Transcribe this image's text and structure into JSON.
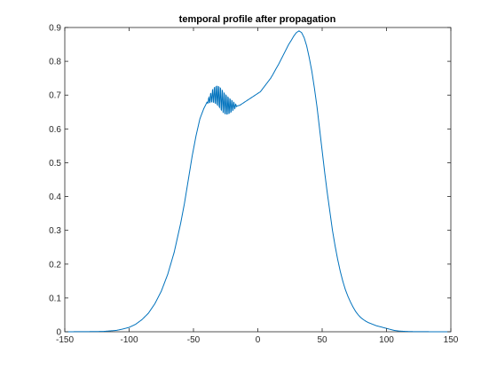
{
  "chart_data": {
    "type": "line",
    "title": "temporal profile after propagation",
    "xlabel": "",
    "ylabel": "",
    "xlim": [
      -150,
      150
    ],
    "ylim": [
      0,
      0.9
    ],
    "xticks": [
      -150,
      -100,
      -50,
      0,
      50,
      100,
      150
    ],
    "yticks": [
      0,
      0.1,
      0.2,
      0.3,
      0.4,
      0.5,
      0.6,
      0.7,
      0.8,
      0.9
    ],
    "grid": false,
    "legend": "none",
    "colors": {
      "line": "#0072bd",
      "axes": "#262626",
      "background": "#ffffff"
    },
    "series": [
      {
        "x": [
          -150,
          -130,
          -120,
          -110,
          -105,
          -100,
          -95,
          -90,
          -85,
          -80,
          -75,
          -70,
          -65,
          -60,
          -57,
          -54,
          -51,
          -48,
          -45,
          -42,
          -40,
          -38,
          -36,
          -34,
          -32,
          -30,
          -28,
          -26,
          -24,
          -22,
          -20,
          -18,
          -16,
          -14,
          -12,
          -10,
          -8,
          -6,
          -4,
          -2,
          0,
          2,
          4,
          6,
          8,
          10,
          12,
          14,
          16,
          18,
          20,
          22,
          24,
          26,
          28,
          30,
          32,
          34,
          36,
          38,
          40,
          42,
          44,
          46,
          48,
          50,
          52,
          54,
          56,
          58,
          60,
          62,
          64,
          66,
          68,
          70,
          72,
          74,
          76,
          78,
          80,
          82,
          84,
          86,
          88,
          90,
          92,
          94,
          96,
          98,
          100,
          102,
          104,
          106,
          108,
          110,
          115,
          120,
          130,
          140,
          150
        ],
        "y": [
          0.0,
          0.0005,
          0.001,
          0.004,
          0.008,
          0.013,
          0.022,
          0.036,
          0.055,
          0.083,
          0.12,
          0.17,
          0.235,
          0.32,
          0.38,
          0.45,
          0.52,
          0.58,
          0.63,
          0.66,
          0.675,
          0.685,
          0.695,
          0.7,
          0.7,
          0.695,
          0.685,
          0.675,
          0.67,
          0.668,
          0.668,
          0.668,
          0.668,
          0.67,
          0.675,
          0.68,
          0.685,
          0.69,
          0.695,
          0.7,
          0.705,
          0.71,
          0.72,
          0.73,
          0.74,
          0.75,
          0.763,
          0.777,
          0.79,
          0.805,
          0.82,
          0.835,
          0.85,
          0.862,
          0.875,
          0.885,
          0.89,
          0.885,
          0.87,
          0.845,
          0.81,
          0.77,
          0.72,
          0.665,
          0.6,
          0.535,
          0.47,
          0.41,
          0.355,
          0.3,
          0.255,
          0.215,
          0.18,
          0.15,
          0.125,
          0.105,
          0.088,
          0.073,
          0.06,
          0.05,
          0.042,
          0.036,
          0.031,
          0.027,
          0.024,
          0.021,
          0.018,
          0.016,
          0.014,
          0.012,
          0.01,
          0.008,
          0.006,
          0.004,
          0.003,
          0.002,
          0.001,
          0.0005,
          0.0002,
          0.0001,
          0.0
        ]
      }
    ],
    "oscillation": {
      "x_range": [
        -40,
        -16
      ],
      "amplitude": 0.035,
      "count": 16
    }
  }
}
